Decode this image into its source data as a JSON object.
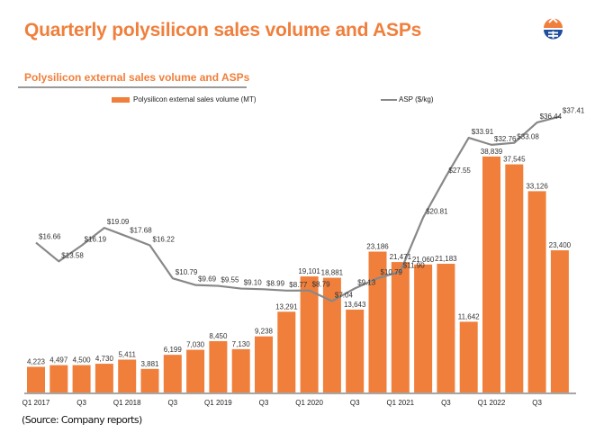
{
  "header": {
    "title": "Quarterly polysilicon sales volume and ASPs",
    "logo_icon": "company-logo-icon"
  },
  "section": {
    "title": "Polysilicon external sales volume and ASPs"
  },
  "legend": {
    "bar_label": "Polysilicon external sales volume (MT)",
    "line_label": "ASP ($/kg)"
  },
  "source": "(Source: Company reports)",
  "colors": {
    "bar": "#F07F3C",
    "line": "#888888",
    "title": "#F07F3C"
  },
  "chart_data": {
    "type": "bar",
    "title": "Polysilicon external sales volume and ASPs",
    "categories": [
      "Q1 2017",
      "Q2 2017",
      "Q3 2017",
      "Q4 2017",
      "Q1 2018",
      "Q2 2018",
      "Q3 2018",
      "Q4 2018",
      "Q1 2019",
      "Q2 2019",
      "Q3 2019",
      "Q4 2019",
      "Q1 2020",
      "Q2 2020",
      "Q3 2020",
      "Q4 2020",
      "Q1 2021",
      "Q2 2021",
      "Q3 2021",
      "Q4 2021",
      "Q1 2022",
      "Q2 2022",
      "Q3 2022",
      "Q4 2022"
    ],
    "tick_labels": [
      "Q1 2017",
      "",
      "Q3",
      "",
      "Q1 2018",
      "",
      "Q3",
      "",
      "Q1 2019",
      "",
      "Q3",
      "",
      "Q1 2020",
      "",
      "Q3",
      "",
      "Q1 2021",
      "",
      "Q3",
      "",
      "Q1 2022",
      "",
      "Q3",
      ""
    ],
    "series": [
      {
        "name": "Polysilicon external sales volume (MT)",
        "type": "bar",
        "axis": "left",
        "values": [
          4223,
          4497,
          4500,
          4730,
          5411,
          3881,
          6199,
          7030,
          8450,
          7130,
          9238,
          13291,
          19101,
          18881,
          13643,
          23186,
          21471,
          21060,
          21183,
          11642,
          38839,
          37545,
          33126,
          23400
        ],
        "labels": [
          "4,223",
          "4,497",
          "4,500",
          "4,730",
          "5,411",
          "3,881",
          "6,199",
          "7,030",
          "8,450",
          "7,130",
          "9,238",
          "13,291",
          "19,101",
          "18,881",
          "13,643",
          "23,186",
          "21,471",
          "21,060",
          "21,183",
          "11,642",
          "38,839",
          "37,545",
          "33,126",
          "23,400"
        ]
      },
      {
        "name": "ASP ($/kg)",
        "type": "line",
        "axis": "right",
        "values": [
          16.66,
          13.58,
          16.19,
          19.09,
          17.68,
          16.22,
          10.79,
          9.69,
          9.55,
          9.1,
          8.99,
          8.77,
          8.79,
          7.04,
          9.13,
          10.79,
          11.9,
          20.81,
          27.55,
          33.91,
          32.76,
          33.08,
          36.44,
          37.41
        ],
        "labels": [
          "$16.66",
          "$13.58",
          "$16.19",
          "$19.09",
          "$17.68",
          "$16.22",
          "$10.79",
          "$9.69",
          "$9.55",
          "$9.10",
          "$8.99",
          "$8.77",
          "$8.79",
          "$7.04",
          "$9.13",
          "$10.79",
          "$11.90",
          "$20.81",
          "$27.55",
          "$33.91",
          "$32.76",
          "$33.08",
          "$36.44",
          "$37.41"
        ]
      }
    ],
    "xlabel": "",
    "ylabel": "",
    "ylim_left": [
      0,
      48000
    ],
    "ylim_right": [
      -8,
      40
    ],
    "grid": false,
    "legend_position": "top"
  }
}
